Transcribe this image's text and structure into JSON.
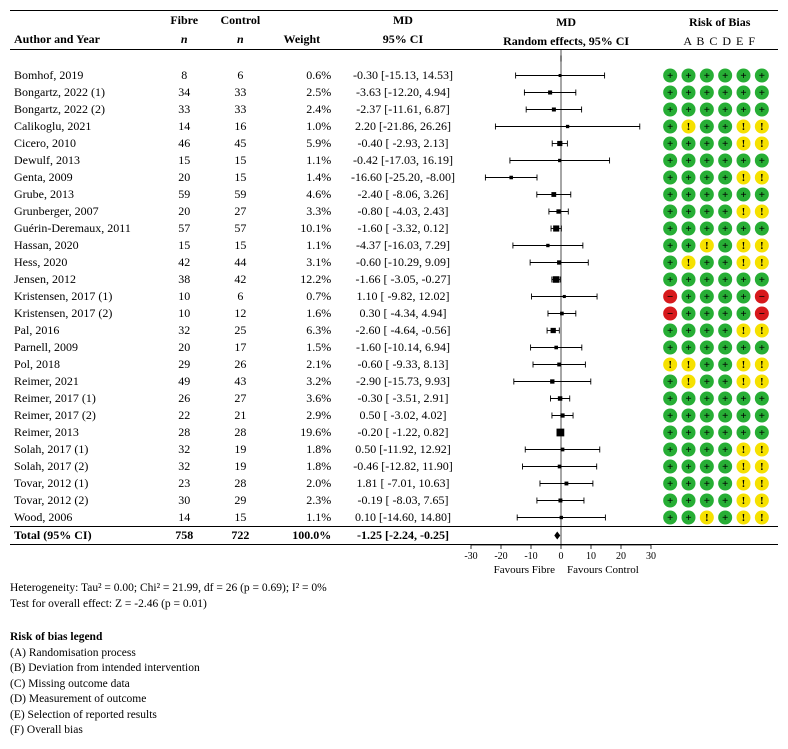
{
  "header": {
    "author_year": "Author and Year",
    "fibre_n_top": "Fibre",
    "fibre_n_bot": "n",
    "control_n_top": "Control",
    "control_n_bot": "n",
    "weight": "Weight",
    "md_top": "MD",
    "md_bot": "95% CI",
    "forest_top": "MD",
    "forest_bot": "Random effects, 95% CI",
    "rob_top": "Risk of Bias",
    "rob_cols": "A  B  C  D  E  F"
  },
  "forest": {
    "xmin": -30,
    "xmax": 30,
    "ticks": [
      -30,
      -20,
      -10,
      0,
      10,
      20,
      30
    ],
    "favours_left": "Favours Fibre",
    "favours_right": "Favours Control",
    "line_color": "#000000",
    "box_color": "#000000",
    "diamond_color": "#000000"
  },
  "rob": {
    "low_color": "#27ae35",
    "some_color": "#f6e100",
    "high_color": "#d7191c",
    "symbol_low": "+",
    "symbol_some": "!",
    "symbol_high": "−",
    "text_color": "#000000",
    "radius": 7
  },
  "studies": [
    {
      "author": "Bomhof, 2019",
      "fn": 8,
      "cn": 6,
      "w": "0.6%",
      "md": "-0.30 [-15.13, 14.53]",
      "pt": -0.3,
      "lo": -15.13,
      "hi": 14.53,
      "wt": 0.6,
      "rob": [
        "L",
        "L",
        "L",
        "L",
        "L",
        "L"
      ]
    },
    {
      "author": "Bongartz, 2022  (1)",
      "fn": 34,
      "cn": 33,
      "w": "2.5%",
      "md": "-3.63 [-12.20,  4.94]",
      "pt": -3.63,
      "lo": -12.2,
      "hi": 4.94,
      "wt": 2.5,
      "rob": [
        "L",
        "L",
        "L",
        "L",
        "L",
        "L"
      ]
    },
    {
      "author": "Bongartz, 2022  (2)",
      "fn": 33,
      "cn": 33,
      "w": "2.4%",
      "md": "-2.37 [-11.61,  6.87]",
      "pt": -2.37,
      "lo": -11.61,
      "hi": 6.87,
      "wt": 2.4,
      "rob": [
        "L",
        "L",
        "L",
        "L",
        "L",
        "L"
      ]
    },
    {
      "author": "Calikoglu, 2021",
      "fn": 14,
      "cn": 16,
      "w": "1.0%",
      "md": "2.20 [-21.86, 26.26]",
      "pt": 2.2,
      "lo": -21.86,
      "hi": 26.26,
      "wt": 1.0,
      "rob": [
        "L",
        "S",
        "L",
        "L",
        "S",
        "S"
      ]
    },
    {
      "author": "Cicero, 2010",
      "fn": 46,
      "cn": 45,
      "w": "5.9%",
      "md": "-0.40 [ -2.93,  2.13]",
      "pt": -0.4,
      "lo": -2.93,
      "hi": 2.13,
      "wt": 5.9,
      "rob": [
        "L",
        "L",
        "L",
        "L",
        "S",
        "S"
      ]
    },
    {
      "author": "Dewulf, 2013",
      "fn": 15,
      "cn": 15,
      "w": "1.1%",
      "md": "-0.42 [-17.03, 16.19]",
      "pt": -0.42,
      "lo": -17.03,
      "hi": 16.19,
      "wt": 1.1,
      "rob": [
        "L",
        "L",
        "L",
        "L",
        "L",
        "L"
      ]
    },
    {
      "author": "Genta, 2009",
      "fn": 20,
      "cn": 15,
      "w": "1.4%",
      "md": "-16.60 [-25.20, -8.00]",
      "pt": -16.6,
      "lo": -25.2,
      "hi": -8.0,
      "wt": 1.4,
      "rob": [
        "L",
        "L",
        "L",
        "L",
        "S",
        "S"
      ]
    },
    {
      "author": "Grube, 2013",
      "fn": 59,
      "cn": 59,
      "w": "4.6%",
      "md": "-2.40 [ -8.06,  3.26]",
      "pt": -2.4,
      "lo": -8.06,
      "hi": 3.26,
      "wt": 4.6,
      "rob": [
        "L",
        "L",
        "L",
        "L",
        "L",
        "L"
      ]
    },
    {
      "author": "Grunberger, 2007",
      "fn": 20,
      "cn": 27,
      "w": "3.3%",
      "md": "-0.80 [ -4.03,  2.43]",
      "pt": -0.8,
      "lo": -4.03,
      "hi": 2.43,
      "wt": 3.3,
      "rob": [
        "L",
        "L",
        "L",
        "L",
        "S",
        "S"
      ]
    },
    {
      "author": "Guérin-Deremaux, 2011",
      "fn": 57,
      "cn": 57,
      "w": "10.1%",
      "md": "-1.60 [ -3.32,  0.12]",
      "pt": -1.6,
      "lo": -3.32,
      "hi": 0.12,
      "wt": 10.1,
      "rob": [
        "L",
        "L",
        "L",
        "L",
        "L",
        "L"
      ]
    },
    {
      "author": "Hassan, 2020",
      "fn": 15,
      "cn": 15,
      "w": "1.1%",
      "md": "-4.37 [-16.03,  7.29]",
      "pt": -4.37,
      "lo": -16.03,
      "hi": 7.29,
      "wt": 1.1,
      "rob": [
        "L",
        "L",
        "S",
        "L",
        "S",
        "S"
      ]
    },
    {
      "author": "Hess, 2020",
      "fn": 42,
      "cn": 44,
      "w": "3.1%",
      "md": "-0.60 [-10.29,  9.09]",
      "pt": -0.6,
      "lo": -10.29,
      "hi": 9.09,
      "wt": 3.1,
      "rob": [
        "L",
        "S",
        "L",
        "L",
        "S",
        "S"
      ]
    },
    {
      "author": "Jensen, 2012",
      "fn": 38,
      "cn": 42,
      "w": "12.2%",
      "md": "-1.66 [ -3.05, -0.27]",
      "pt": -1.66,
      "lo": -3.05,
      "hi": -0.27,
      "wt": 12.2,
      "rob": [
        "L",
        "L",
        "L",
        "L",
        "L",
        "L"
      ]
    },
    {
      "author": "Kristensen, 2017  (1)",
      "fn": 10,
      "cn": 6,
      "w": "0.7%",
      "md": "1.10 [ -9.82, 12.02]",
      "pt": 1.1,
      "lo": -9.82,
      "hi": 12.02,
      "wt": 0.7,
      "rob": [
        "H",
        "L",
        "L",
        "L",
        "L",
        "H"
      ]
    },
    {
      "author": "Kristensen, 2017  (2)",
      "fn": 10,
      "cn": 12,
      "w": "1.6%",
      "md": "0.30 [ -4.34,  4.94]",
      "pt": 0.3,
      "lo": -4.34,
      "hi": 4.94,
      "wt": 1.6,
      "rob": [
        "H",
        "L",
        "L",
        "L",
        "L",
        "H"
      ]
    },
    {
      "author": "Pal, 2016",
      "fn": 32,
      "cn": 25,
      "w": "6.3%",
      "md": "-2.60 [ -4.64, -0.56]",
      "pt": -2.6,
      "lo": -4.64,
      "hi": -0.56,
      "wt": 6.3,
      "rob": [
        "L",
        "L",
        "L",
        "L",
        "S",
        "S"
      ]
    },
    {
      "author": "Parnell, 2009",
      "fn": 20,
      "cn": 17,
      "w": "1.5%",
      "md": "-1.60 [-10.14,  6.94]",
      "pt": -1.6,
      "lo": -10.14,
      "hi": 6.94,
      "wt": 1.5,
      "rob": [
        "L",
        "L",
        "L",
        "L",
        "L",
        "L"
      ]
    },
    {
      "author": "Pol, 2018",
      "fn": 29,
      "cn": 26,
      "w": "2.1%",
      "md": "-0.60 [ -9.33,  8.13]",
      "pt": -0.6,
      "lo": -9.33,
      "hi": 8.13,
      "wt": 2.1,
      "rob": [
        "S",
        "S",
        "L",
        "L",
        "S",
        "S"
      ]
    },
    {
      "author": "Reimer, 2021",
      "fn": 49,
      "cn": 43,
      "w": "3.2%",
      "md": "-2.90 [-15.73,  9.93]",
      "pt": -2.9,
      "lo": -15.73,
      "hi": 9.93,
      "wt": 3.2,
      "rob": [
        "L",
        "S",
        "L",
        "L",
        "S",
        "S"
      ]
    },
    {
      "author": "Reimer, 2017 (1)",
      "fn": 26,
      "cn": 27,
      "w": "3.6%",
      "md": "-0.30 [ -3.51,  2.91]",
      "pt": -0.3,
      "lo": -3.51,
      "hi": 2.91,
      "wt": 3.6,
      "rob": [
        "L",
        "L",
        "L",
        "L",
        "L",
        "L"
      ]
    },
    {
      "author": "Reimer, 2017 (2)",
      "fn": 22,
      "cn": 21,
      "w": "2.9%",
      "md": "0.50 [ -3.02,  4.02]",
      "pt": 0.5,
      "lo": -3.02,
      "hi": 4.02,
      "wt": 2.9,
      "rob": [
        "L",
        "L",
        "L",
        "L",
        "L",
        "L"
      ]
    },
    {
      "author": "Reimer, 2013",
      "fn": 28,
      "cn": 28,
      "w": "19.6%",
      "md": "-0.20 [ -1.22,  0.82]",
      "pt": -0.2,
      "lo": -1.22,
      "hi": 0.82,
      "wt": 19.6,
      "rob": [
        "L",
        "L",
        "L",
        "L",
        "L",
        "L"
      ]
    },
    {
      "author": "Solah, 2017  (1)",
      "fn": 32,
      "cn": 19,
      "w": "1.8%",
      "md": "0.50 [-11.92, 12.92]",
      "pt": 0.5,
      "lo": -11.92,
      "hi": 12.92,
      "wt": 1.8,
      "rob": [
        "L",
        "L",
        "L",
        "L",
        "S",
        "S"
      ]
    },
    {
      "author": "Solah, 2017  (2)",
      "fn": 32,
      "cn": 19,
      "w": "1.8%",
      "md": "-0.46 [-12.82, 11.90]",
      "pt": -0.46,
      "lo": -12.82,
      "hi": 11.9,
      "wt": 1.8,
      "rob": [
        "L",
        "L",
        "L",
        "L",
        "S",
        "S"
      ]
    },
    {
      "author": "Tovar, 2012  (1)",
      "fn": 23,
      "cn": 28,
      "w": "2.0%",
      "md": "1.81 [ -7.01, 10.63]",
      "pt": 1.81,
      "lo": -7.01,
      "hi": 10.63,
      "wt": 2.0,
      "rob": [
        "L",
        "L",
        "L",
        "L",
        "S",
        "S"
      ]
    },
    {
      "author": "Tovar, 2012 (2)",
      "fn": 30,
      "cn": 29,
      "w": "2.3%",
      "md": "-0.19 [ -8.03,  7.65]",
      "pt": -0.19,
      "lo": -8.03,
      "hi": 7.65,
      "wt": 2.3,
      "rob": [
        "L",
        "L",
        "L",
        "L",
        "S",
        "S"
      ]
    },
    {
      "author": "Wood, 2006",
      "fn": 14,
      "cn": 15,
      "w": "1.1%",
      "md": "0.10 [-14.60, 14.80]",
      "pt": 0.1,
      "lo": -14.6,
      "hi": 14.8,
      "wt": 1.1,
      "rob": [
        "L",
        "L",
        "S",
        "L",
        "S",
        "S"
      ]
    }
  ],
  "total": {
    "label": "Total (95% CI)",
    "fn": 758,
    "cn": 722,
    "w": "100.0%",
    "md": "-1.25 [-2.24,  -0.25]",
    "pt": -1.25,
    "lo": -2.24,
    "hi": -0.25
  },
  "heterogeneity": "Heterogeneity: Tau² = 0.00; Chi² = 21.99, df = 26 (p = 0.69); I² = 0%",
  "overall_effect": "Test for overall effect: Z = -2.46 (p = 0.01)",
  "legend": {
    "title": "Risk of bias legend",
    "items": [
      "(A) Randomisation process",
      "(B) Deviation from intended intervention",
      "(C) Missing outcome data",
      "(D) Measurement of outcome",
      "(E) Selection of reported results",
      "(F) Overall bias"
    ]
  }
}
